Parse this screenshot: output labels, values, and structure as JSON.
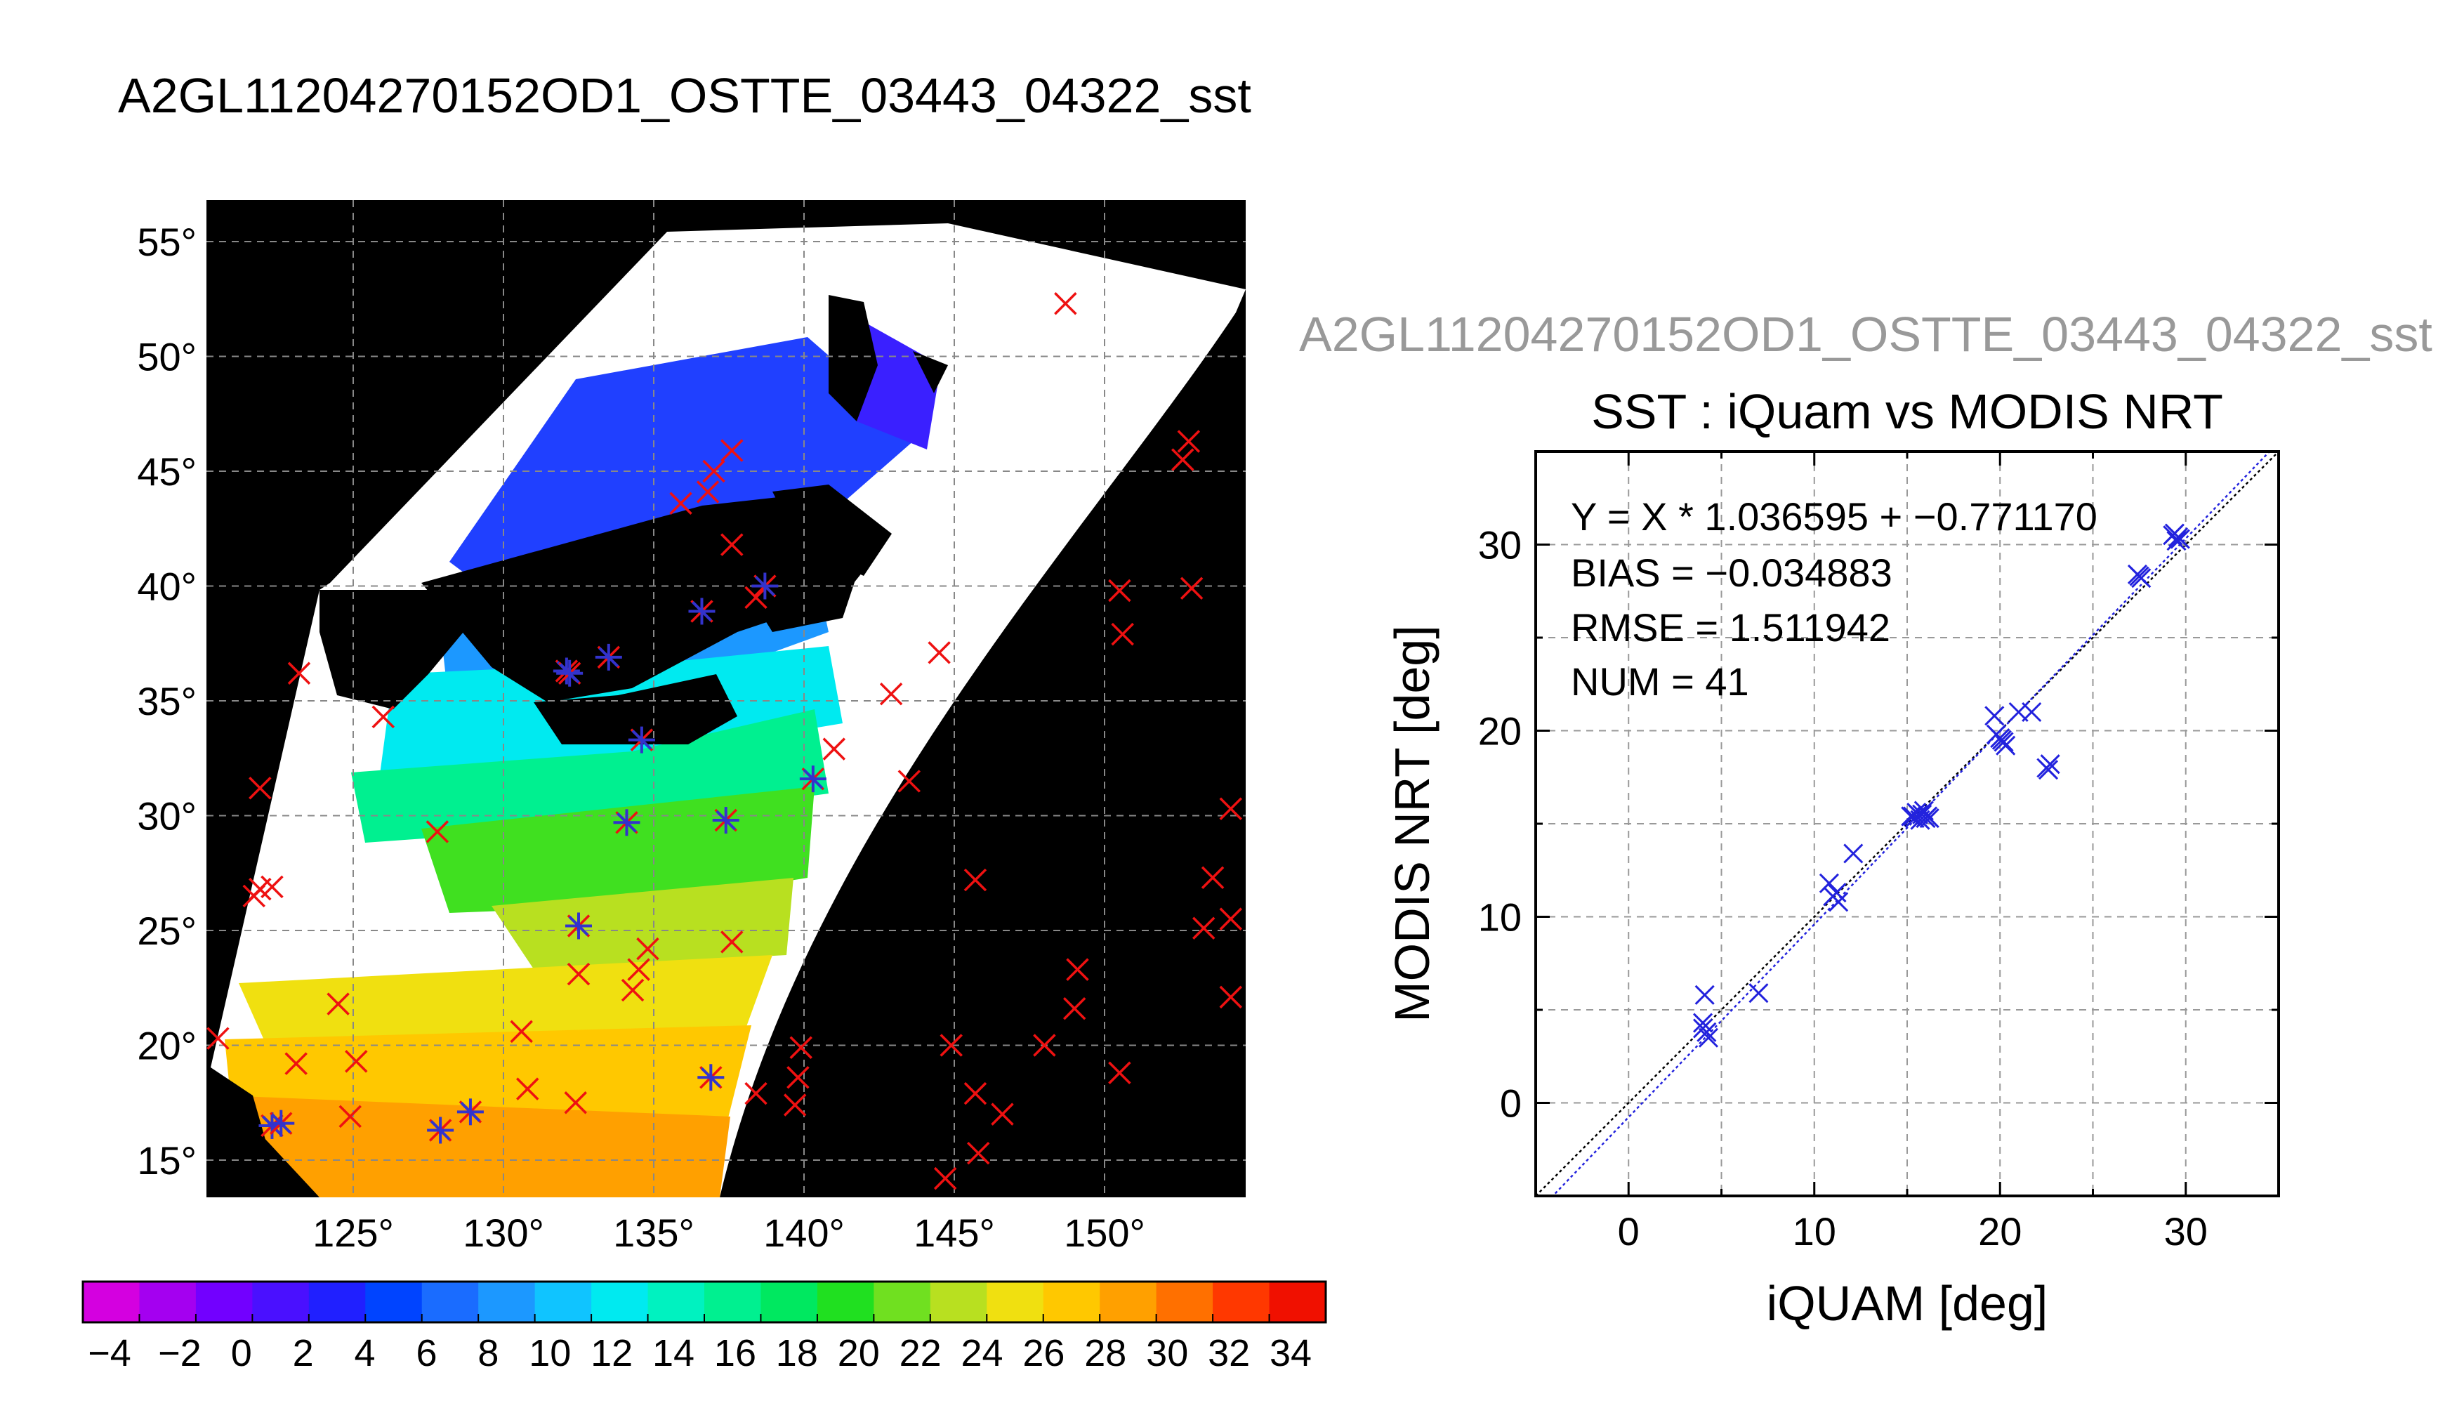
{
  "header": {
    "title": "A2GL11204270152OD1_OSTTE_03443_04322_sst"
  },
  "map": {
    "lat_ticks": [
      55,
      50,
      45,
      40,
      35,
      30,
      25,
      20,
      15
    ],
    "lon_ticks": [
      125,
      130,
      135,
      140,
      145,
      150
    ],
    "degree_symbol": "°",
    "background_color": "#000000",
    "gridlines": true,
    "marker_legend": {
      "match_marker": "asterisk",
      "match_color": "#3333cc",
      "other_marker": "x",
      "other_color": "#ee1111"
    },
    "matched_points": [
      [
        122.3,
        16.5
      ],
      [
        122.6,
        16.6
      ],
      [
        128.9,
        17.1
      ],
      [
        127.9,
        16.3
      ],
      [
        136.9,
        18.6
      ],
      [
        132.5,
        25.2
      ],
      [
        134.1,
        29.7
      ],
      [
        137.4,
        29.8
      ],
      [
        140.3,
        31.6
      ],
      [
        134.6,
        33.3
      ],
      [
        132.1,
        36.3
      ],
      [
        133.5,
        36.9
      ],
      [
        136.6,
        38.9
      ],
      [
        138.7,
        40.0
      ],
      [
        132.2,
        36.2
      ]
    ],
    "unmatched_points": [
      [
        148.7,
        52.3
      ],
      [
        152.8,
        46.3
      ],
      [
        152.6,
        45.5
      ],
      [
        137.6,
        45.9
      ],
      [
        137.0,
        45.0
      ],
      [
        136.8,
        44.1
      ],
      [
        135.9,
        43.6
      ],
      [
        137.6,
        41.8
      ],
      [
        138.4,
        39.5
      ],
      [
        150.5,
        39.8
      ],
      [
        152.9,
        39.9
      ],
      [
        150.6,
        37.9
      ],
      [
        144.5,
        37.1
      ],
      [
        142.9,
        35.3
      ],
      [
        123.2,
        36.2
      ],
      [
        126.0,
        34.3
      ],
      [
        141.0,
        32.9
      ],
      [
        143.5,
        31.5
      ],
      [
        121.9,
        31.2
      ],
      [
        127.8,
        29.3
      ],
      [
        154.2,
        30.3
      ],
      [
        121.9,
        26.8
      ],
      [
        121.7,
        26.5
      ],
      [
        122.3,
        26.9
      ],
      [
        145.7,
        27.2
      ],
      [
        153.6,
        27.3
      ],
      [
        153.3,
        25.1
      ],
      [
        154.2,
        25.5
      ],
      [
        154.2,
        22.1
      ],
      [
        137.6,
        24.5
      ],
      [
        134.8,
        24.2
      ],
      [
        134.5,
        23.3
      ],
      [
        132.5,
        23.1
      ],
      [
        134.3,
        22.4
      ],
      [
        149.1,
        23.3
      ],
      [
        149.0,
        21.6
      ],
      [
        124.5,
        21.8
      ],
      [
        120.5,
        20.3
      ],
      [
        125.1,
        19.3
      ],
      [
        123.1,
        19.2
      ],
      [
        130.6,
        20.6
      ],
      [
        130.8,
        18.1
      ],
      [
        139.9,
        19.9
      ],
      [
        139.8,
        18.6
      ],
      [
        139.7,
        17.4
      ],
      [
        138.4,
        17.9
      ],
      [
        144.9,
        20.0
      ],
      [
        145.7,
        17.9
      ],
      [
        148.0,
        20.0
      ],
      [
        150.5,
        18.8
      ],
      [
        146.6,
        17.0
      ],
      [
        145.8,
        15.3
      ],
      [
        144.7,
        14.2
      ],
      [
        124.9,
        16.9
      ],
      [
        132.4,
        17.5
      ]
    ]
  },
  "colorbar": {
    "tick_labels": [
      "−4",
      "−2",
      "0",
      "2",
      "4",
      "6",
      "8",
      "10",
      "12",
      "14",
      "16",
      "18",
      "20",
      "22",
      "24",
      "26",
      "28",
      "30",
      "32",
      "34"
    ],
    "tick_values": [
      -4,
      -2,
      0,
      2,
      4,
      6,
      8,
      10,
      12,
      14,
      16,
      18,
      20,
      22,
      24,
      26,
      28,
      30,
      32,
      34
    ],
    "range": [
      -5,
      35
    ],
    "colors": [
      "#d400e0",
      "#a400f0",
      "#7200ff",
      "#4a10ff",
      "#2020ff",
      "#0044ff",
      "#1a6cff",
      "#1c98ff",
      "#10c4ff",
      "#00eaf0",
      "#00f2c0",
      "#00f090",
      "#00e860",
      "#20e020",
      "#70e020",
      "#b8e020",
      "#f0e010",
      "#ffc800",
      "#ffa000",
      "#ff7000",
      "#ff3800",
      "#f01000"
    ],
    "segment_count": 20
  },
  "scatter_title": "A2GL11204270152OD1_OSTTE_03443_04322_sst",
  "chart_data": {
    "type": "scatter",
    "title": "SST : iQuam vs MODIS NRT",
    "xlabel": "iQUAM [deg]",
    "ylabel": "MODIS NRT [deg]",
    "xlim": [
      -5,
      35
    ],
    "ylim": [
      -5,
      35
    ],
    "x_ticks": [
      0,
      10,
      20,
      30
    ],
    "y_ticks": [
      0,
      10,
      20,
      30
    ],
    "grid": true,
    "stats": {
      "fit": "Y = X * 1.036595 + −0.771170",
      "bias": "BIAS = −0.034883",
      "rmse": "RMSE = 1.511942",
      "num": "NUM = 41"
    },
    "fit_line": {
      "slope": 1.036595,
      "intercept": -0.77117
    },
    "marker_color": "#2222dd",
    "x": [
      4.1,
      4.0,
      4.2,
      4.3,
      7.0,
      10.8,
      11.0,
      11.3,
      12.1,
      15.3,
      15.5,
      15.7,
      15.8,
      16.0,
      16.1,
      19.7,
      20.0,
      20.3,
      20.1,
      21.0,
      21.7,
      22.6,
      22.7,
      27.4,
      27.6,
      29.4,
      29.5,
      29.6,
      15.2,
      15.9,
      15.4,
      11.2,
      20.2,
      22.5,
      29.3,
      4.0,
      19.8,
      15.6,
      16.2,
      27.5,
      29.7
    ],
    "y": [
      5.8,
      4.3,
      3.8,
      3.5,
      5.9,
      11.8,
      11.1,
      10.8,
      13.4,
      15.4,
      15.6,
      15.2,
      15.5,
      15.3,
      15.4,
      20.8,
      19.6,
      19.2,
      19.5,
      21.0,
      21.0,
      17.9,
      18.2,
      28.4,
      28.2,
      30.6,
      30.2,
      30.4,
      15.4,
      15.7,
      15.3,
      11.3,
      19.4,
      18.0,
      30.5,
      4.0,
      19.8,
      15.5,
      15.3,
      28.3,
      30.3
    ]
  }
}
